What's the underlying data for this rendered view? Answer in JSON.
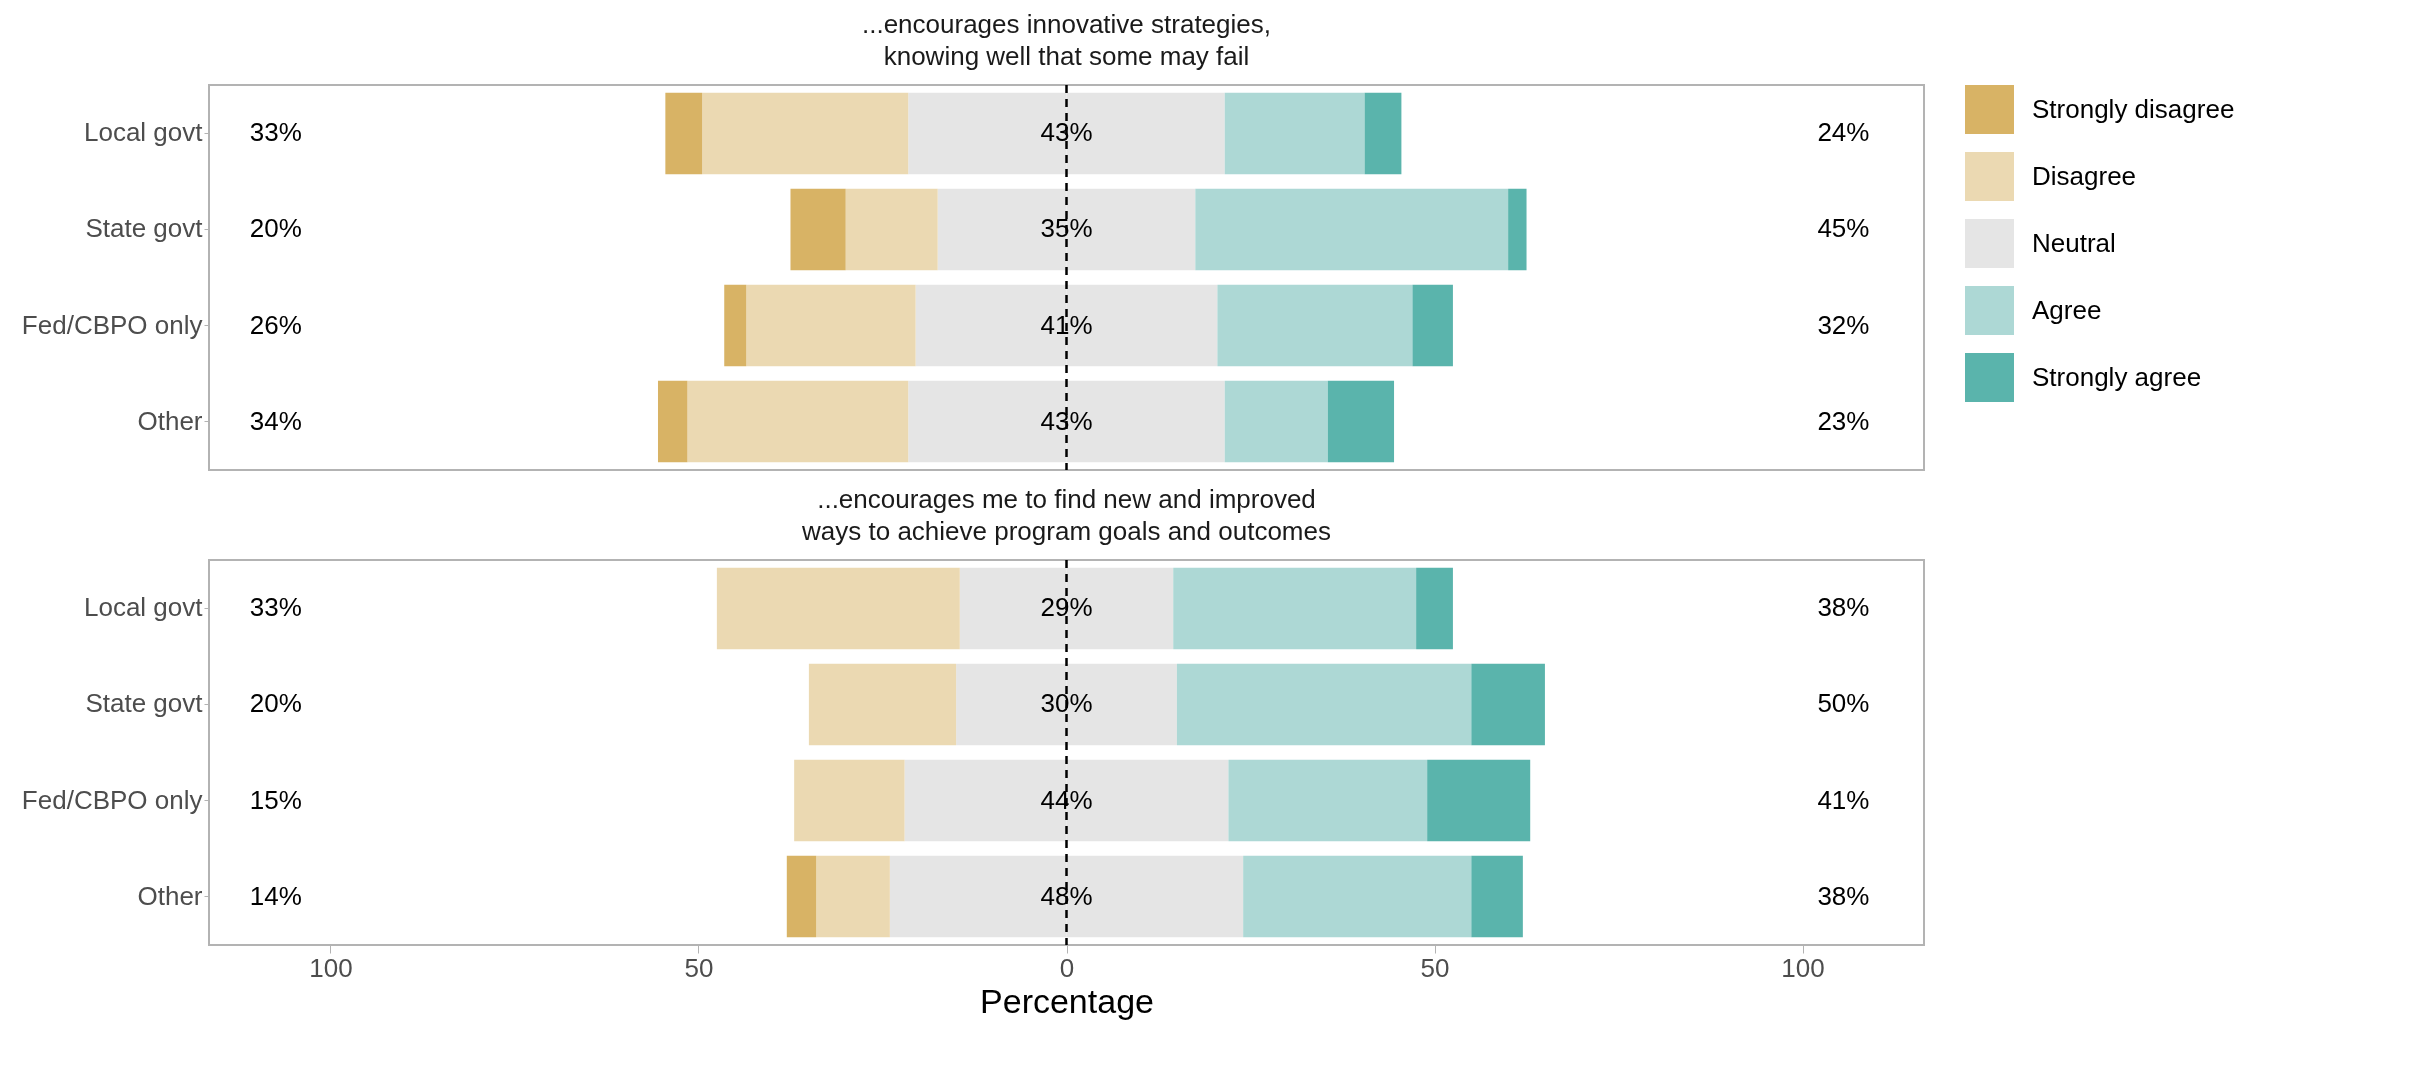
{
  "chart_data": [
    {
      "type": "bar",
      "orientation": "horizontal",
      "stacked": true,
      "title": "...encourages innovative strategies, knowing well that some may fail",
      "categories": [
        "Local govt",
        "State govt",
        "Fed/CBPO only",
        "Other"
      ],
      "series": [
        {
          "name": "Neutral",
          "color": "#e5e5e5",
          "values": [
            -21.5,
            -17.5,
            -20.5,
            -21.5
          ]
        },
        {
          "name": "Disagree",
          "color": "#ebd9b2",
          "values": [
            -28,
            -12.5,
            -23,
            -30
          ]
        },
        {
          "name": "Strongly disagree",
          "color": "#d8b365",
          "values": [
            -5,
            -7.5,
            -3,
            -4
          ]
        },
        {
          "color": "#e5e5e5",
          "values": [
            21.5,
            17.5,
            20.5,
            21.5
          ]
        },
        {
          "name": "Agree",
          "color": "#add8d5",
          "values": [
            19,
            42.5,
            26.5,
            14
          ]
        },
        {
          "name": "Strongly agree",
          "color": "#5ab4ac",
          "values": [
            5,
            2.5,
            5.5,
            9
          ]
        }
      ],
      "xlim": [
        -116.5,
        116.5
      ],
      "tick_labels": "y",
      "grid": false,
      "legend": "right",
      "ref_lines": [
        {
          "axis": "x",
          "value": 0,
          "color": "#000000",
          "line_style": "dashed"
        }
      ],
      "annotations": [
        "33%",
        "43%",
        "24%",
        "20%",
        "35%",
        "45%",
        "26%",
        "41%",
        "32%",
        "34%",
        "43%",
        "23%"
      ]
    },
    {
      "type": "bar",
      "orientation": "horizontal",
      "stacked": true,
      "title": "...encourages me to find new and improved ways to achieve program goals and outcomes",
      "xlabel": "Percentage",
      "categories": [
        "Local govt",
        "State govt",
        "Fed/CBPO only",
        "Other"
      ],
      "series": [
        {
          "color": "#e5e5e5",
          "values": [
            -14.5,
            -15,
            -22,
            -24
          ]
        },
        {
          "color": "#ebd9b2",
          "values": [
            -33,
            -20,
            -15,
            -10
          ]
        },
        {
          "color": "#d8b365",
          "values": [
            0,
            0,
            0,
            -4
          ]
        },
        {
          "color": "#e5e5e5",
          "values": [
            14.5,
            15,
            22,
            24
          ]
        },
        {
          "color": "#add8d5",
          "values": [
            33,
            40,
            27,
            31
          ]
        },
        {
          "color": "#5ab4ac",
          "values": [
            5,
            10,
            14,
            7
          ]
        }
      ],
      "xlim": [
        -116.5,
        116.5
      ],
      "xticks": [
        {
          "value": -100,
          "label": "100"
        },
        {
          "value": -50,
          "label": "50"
        },
        0,
        50,
        100
      ],
      "grid": false,
      "ref_lines": [
        {
          "axis": "x",
          "value": 0,
          "color": "#000000",
          "line_style": "dashed"
        }
      ],
      "annotations": [
        "33%",
        "29%",
        "38%",
        "20%",
        "30%",
        "50%",
        "15%",
        "44%",
        "41%",
        "14%",
        "48%",
        "38%"
      ]
    }
  ]
}
